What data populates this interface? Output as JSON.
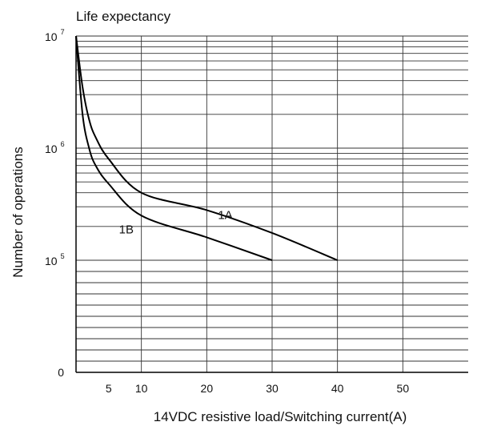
{
  "chart_data": {
    "type": "line",
    "title": "Life expectancy",
    "xlabel": "14VDC resistive load/Switching current(A)",
    "ylabel": "Number of operations",
    "x_ticks": [
      5,
      10,
      20,
      30,
      40,
      50
    ],
    "y_ticks": [
      {
        "label": "0"
      },
      {
        "base": "10",
        "exp": "5"
      },
      {
        "base": "10",
        "exp": "6"
      },
      {
        "base": "10",
        "exp": "7"
      }
    ],
    "y_scale": "log",
    "grid": true,
    "series": [
      {
        "name": "1A",
        "x": [
          0,
          1,
          2,
          3,
          5,
          10,
          20,
          30,
          40
        ],
        "y": [
          10000000,
          3500000,
          1800000,
          1250000,
          800000,
          400000,
          280000,
          175000,
          100000
        ]
      },
      {
        "name": "1B",
        "x": [
          0,
          1,
          2,
          3,
          5,
          10,
          20,
          30
        ],
        "y": [
          10000000,
          2000000,
          1000000,
          700000,
          480000,
          250000,
          160000,
          100000
        ]
      }
    ]
  }
}
